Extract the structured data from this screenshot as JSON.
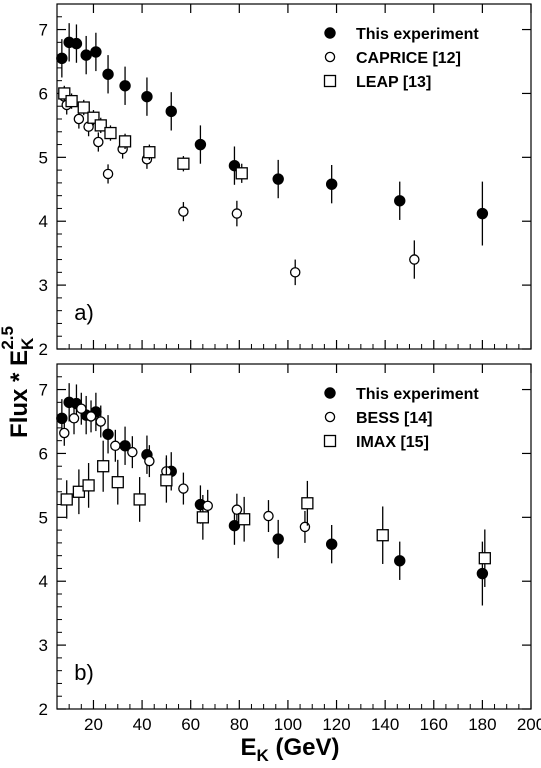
{
  "chart_data": [
    {
      "type": "scatter",
      "panel_label": "a)",
      "xlim": [
        5,
        200
      ],
      "ylim": [
        2,
        7.4
      ],
      "yticks": [
        "2",
        "3",
        "4",
        "5",
        "6",
        "7"
      ],
      "grid": false,
      "legend_position": "top-right",
      "series": [
        {
          "name": "This experiment",
          "marker": "filled-circle",
          "points": [
            {
              "x": 7,
              "y": 6.55,
              "err": 0.3
            },
            {
              "x": 10,
              "y": 6.8,
              "err": 0.3
            },
            {
              "x": 13,
              "y": 6.78,
              "err": 0.3
            },
            {
              "x": 17,
              "y": 6.6,
              "err": 0.3
            },
            {
              "x": 21,
              "y": 6.65,
              "err": 0.3
            },
            {
              "x": 26,
              "y": 6.3,
              "err": 0.3
            },
            {
              "x": 33,
              "y": 6.12,
              "err": 0.3
            },
            {
              "x": 42,
              "y": 5.95,
              "err": 0.3
            },
            {
              "x": 52,
              "y": 5.72,
              "err": 0.3
            },
            {
              "x": 64,
              "y": 5.2,
              "err": 0.3
            },
            {
              "x": 78,
              "y": 4.87,
              "err": 0.3
            },
            {
              "x": 96,
              "y": 4.66,
              "err": 0.3
            },
            {
              "x": 118,
              "y": 4.58,
              "err": 0.3
            },
            {
              "x": 146,
              "y": 4.32,
              "err": 0.3
            },
            {
              "x": 180,
              "y": 4.12,
              "err": 0.5
            }
          ]
        },
        {
          "name": "CAPRICE [12]",
          "marker": "open-circle",
          "points": [
            {
              "x": 8,
              "y": 5.95,
              "err": 0.15
            },
            {
              "x": 9,
              "y": 5.82,
              "err": 0.15
            },
            {
              "x": 14,
              "y": 5.6,
              "err": 0.15
            },
            {
              "x": 18,
              "y": 5.48,
              "err": 0.15
            },
            {
              "x": 22,
              "y": 5.24,
              "err": 0.15
            },
            {
              "x": 26,
              "y": 4.74,
              "err": 0.15
            },
            {
              "x": 32,
              "y": 5.13,
              "err": 0.15
            },
            {
              "x": 42,
              "y": 4.97,
              "err": 0.15
            },
            {
              "x": 57,
              "y": 4.15,
              "err": 0.15
            },
            {
              "x": 79,
              "y": 4.12,
              "err": 0.2
            },
            {
              "x": 103,
              "y": 3.2,
              "err": 0.2
            },
            {
              "x": 152,
              "y": 3.4,
              "err": 0.3
            }
          ]
        },
        {
          "name": "LEAP [13]",
          "marker": "open-square",
          "points": [
            {
              "x": 8,
              "y": 6.0,
              "err": 0.12
            },
            {
              "x": 11,
              "y": 5.88,
              "err": 0.12
            },
            {
              "x": 16,
              "y": 5.78,
              "err": 0.12
            },
            {
              "x": 20,
              "y": 5.62,
              "err": 0.12
            },
            {
              "x": 23,
              "y": 5.5,
              "err": 0.12
            },
            {
              "x": 27,
              "y": 5.38,
              "err": 0.12
            },
            {
              "x": 33,
              "y": 5.25,
              "err": 0.12
            },
            {
              "x": 43,
              "y": 5.08,
              "err": 0.12
            },
            {
              "x": 57,
              "y": 4.9,
              "err": 0.12
            },
            {
              "x": 81,
              "y": 4.75,
              "err": 0.15
            }
          ]
        }
      ]
    },
    {
      "type": "scatter",
      "panel_label": "b)",
      "xlim": [
        5,
        200
      ],
      "ylim": [
        2,
        7.4
      ],
      "yticks": [
        "2",
        "3",
        "4",
        "5",
        "6",
        "7"
      ],
      "xticks": [
        "20",
        "40",
        "60",
        "80",
        "100",
        "120",
        "140",
        "160",
        "180",
        "200"
      ],
      "grid": false,
      "legend_position": "top-right",
      "series": [
        {
          "name": "This experiment",
          "marker": "filled-circle",
          "points": [
            {
              "x": 7,
              "y": 6.55,
              "err": 0.3
            },
            {
              "x": 10,
              "y": 6.8,
              "err": 0.3
            },
            {
              "x": 13,
              "y": 6.78,
              "err": 0.3
            },
            {
              "x": 17,
              "y": 6.6,
              "err": 0.3
            },
            {
              "x": 21,
              "y": 6.65,
              "err": 0.3
            },
            {
              "x": 26,
              "y": 6.3,
              "err": 0.3
            },
            {
              "x": 33,
              "y": 6.12,
              "err": 0.3
            },
            {
              "x": 42,
              "y": 5.98,
              "err": 0.3
            },
            {
              "x": 52,
              "y": 5.72,
              "err": 0.3
            },
            {
              "x": 64,
              "y": 5.2,
              "err": 0.3
            },
            {
              "x": 78,
              "y": 4.87,
              "err": 0.3
            },
            {
              "x": 96,
              "y": 4.66,
              "err": 0.3
            },
            {
              "x": 118,
              "y": 4.58,
              "err": 0.3
            },
            {
              "x": 146,
              "y": 4.32,
              "err": 0.3
            },
            {
              "x": 180,
              "y": 4.12,
              "err": 0.5
            }
          ]
        },
        {
          "name": "BESS [14]",
          "marker": "open-circle",
          "points": [
            {
              "x": 8,
              "y": 6.32,
              "err": 0.2
            },
            {
              "x": 12,
              "y": 6.55,
              "err": 0.25
            },
            {
              "x": 15,
              "y": 6.7,
              "err": 0.25
            },
            {
              "x": 19,
              "y": 6.58,
              "err": 0.25
            },
            {
              "x": 23,
              "y": 6.5,
              "err": 0.25
            },
            {
              "x": 29,
              "y": 6.12,
              "err": 0.25
            },
            {
              "x": 36,
              "y": 6.02,
              "err": 0.25
            },
            {
              "x": 43,
              "y": 5.88,
              "err": 0.25
            },
            {
              "x": 50,
              "y": 5.72,
              "err": 0.25
            },
            {
              "x": 57,
              "y": 5.45,
              "err": 0.25
            },
            {
              "x": 67,
              "y": 5.18,
              "err": 0.25
            },
            {
              "x": 79,
              "y": 5.12,
              "err": 0.25
            },
            {
              "x": 92,
              "y": 5.02,
              "err": 0.25
            },
            {
              "x": 107,
              "y": 4.85,
              "err": 0.25
            }
          ]
        },
        {
          "name": "IMAX [15]",
          "marker": "open-square",
          "points": [
            {
              "x": 9,
              "y": 5.28,
              "err": 0.3
            },
            {
              "x": 14,
              "y": 5.4,
              "err": 0.35
            },
            {
              "x": 18,
              "y": 5.5,
              "err": 0.35
            },
            {
              "x": 24,
              "y": 5.8,
              "err": 0.4
            },
            {
              "x": 30,
              "y": 5.55,
              "err": 0.35
            },
            {
              "x": 39,
              "y": 5.28,
              "err": 0.35
            },
            {
              "x": 50,
              "y": 5.58,
              "err": 0.35
            },
            {
              "x": 65,
              "y": 5.0,
              "err": 0.35
            },
            {
              "x": 82,
              "y": 4.97,
              "err": 0.35
            },
            {
              "x": 108,
              "y": 5.22,
              "err": 0.35
            },
            {
              "x": 139,
              "y": 4.72,
              "err": 0.45
            },
            {
              "x": 181,
              "y": 4.36,
              "err": 0.45
            }
          ]
        }
      ]
    }
  ],
  "axes": {
    "ylabel_main": "Flux * E",
    "ylabel_sub": "K",
    "ylabel_sup": "2.5",
    "xlabel_main": "E",
    "xlabel_sub": "K",
    "xlabel_rest": " (GeV)"
  }
}
